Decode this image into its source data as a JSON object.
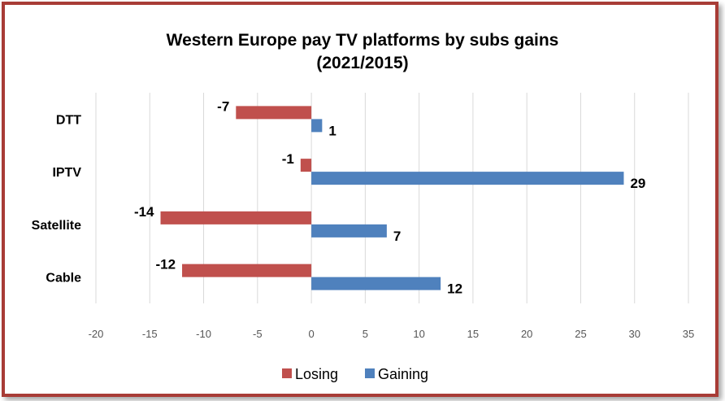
{
  "chart_data": {
    "type": "bar",
    "orientation": "horizontal",
    "title": "Western Europe pay TV platforms by subs gains",
    "subtitle": "(2021/2015)",
    "categories": [
      "DTT",
      "IPTV",
      "Satellite",
      "Cable"
    ],
    "series": [
      {
        "name": "Losing",
        "values": [
          -7,
          -1,
          -14,
          -12
        ],
        "color": "#c0504d"
      },
      {
        "name": "Gaining",
        "values": [
          1,
          29,
          7,
          12
        ],
        "color": "#4f81bd"
      }
    ],
    "xlim": [
      -20,
      35
    ],
    "xticks": [
      -20,
      -15,
      -10,
      -5,
      0,
      5,
      10,
      15,
      20,
      25,
      30,
      35
    ],
    "grid": true,
    "legend_position": "bottom"
  },
  "colors": {
    "border": "#a83c36",
    "gridline": "#d9d9d9"
  }
}
